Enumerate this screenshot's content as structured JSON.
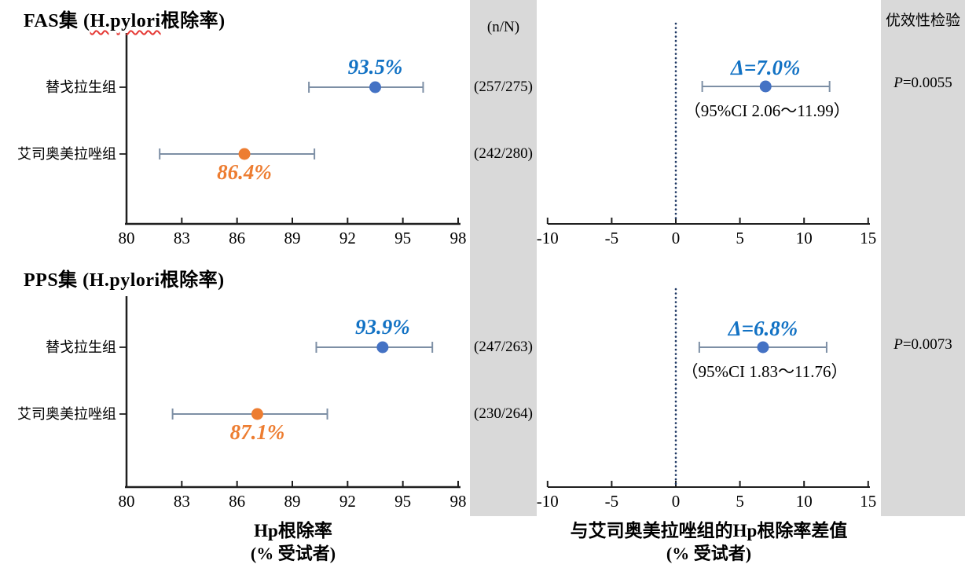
{
  "colors": {
    "tegoprazan_dot": "#4472C4",
    "tegoprazan_label": "#1272C4",
    "esomeprazole_dot": "#ED7D31",
    "esomeprazole_label": "#ED7D31",
    "error_bar": "#7D8FA5",
    "axis": "#1F1F1F",
    "ref_line": "#1F3864",
    "panel_bg": "#D9D9D9",
    "text": "#000000"
  },
  "columns": {
    "n_header": "(n/N)",
    "superiority_header": "优效性检验"
  },
  "axis_captions": {
    "rate_line1": "Hp根除率",
    "rate_line2": "(% 受试者)",
    "diff_line1": "与艾司奥美拉唑组的Hp根除率差值",
    "diff_line2": "(% 受试者)"
  },
  "chart_data": {
    "type": "scatter",
    "subtype": "forest-plot-dot-with-95ci-error-bars",
    "rate_axis": {
      "xlim": [
        80,
        98
      ],
      "ticks": [
        80,
        83,
        86,
        89,
        92,
        95,
        98
      ],
      "xlabel": "Hp根除率 (% 受试者)",
      "grid": false
    },
    "diff_axis": {
      "xlim": [
        -10,
        15
      ],
      "ticks": [
        -10,
        -5,
        0,
        5,
        10,
        15
      ],
      "ref_x": 0,
      "xlabel": "与艾司奥美拉唑组的Hp根除率差值 (% 受试者)",
      "grid": false
    },
    "panels": [
      {
        "key": "fas",
        "title": {
          "pre": "FAS集 (",
          "mark": "H.pylori",
          "post": "根除率)"
        },
        "rows": [
          {
            "group": "替戈拉生组",
            "series": "tegoprazan",
            "rate": 93.5,
            "rate_label": "93.5%",
            "ci": [
              89.9,
              96.1
            ],
            "n_over_N": "(257/275)",
            "label_side": "above"
          },
          {
            "group": "艾司奥美拉唑组",
            "series": "esomeprazole",
            "rate": 86.4,
            "rate_label": "86.4%",
            "ci": [
              81.8,
              90.2
            ],
            "n_over_N": "(242/280)",
            "label_side": "below"
          }
        ],
        "diff": {
          "delta": 7.0,
          "delta_label": "Δ=7.0%",
          "ci": [
            2.06,
            11.99
          ],
          "ci_label": "（95%CI  2.06～11.99）"
        },
        "superiority": {
          "p_italic": "P",
          "p_rest": "=0.0055"
        }
      },
      {
        "key": "pps",
        "title": {
          "pre": "PPS集 (",
          "mark": "H.pylori",
          "post": "根除率)"
        },
        "rows": [
          {
            "group": "替戈拉生组",
            "series": "tegoprazan",
            "rate": 93.9,
            "rate_label": "93.9%",
            "ci": [
              90.3,
              96.6
            ],
            "n_over_N": "(247/263)",
            "label_side": "above"
          },
          {
            "group": "艾司奥美拉唑组",
            "series": "esomeprazole",
            "rate": 87.1,
            "rate_label": "87.1%",
            "ci": [
              82.5,
              90.9
            ],
            "n_over_N": "(230/264)",
            "label_side": "below"
          }
        ],
        "diff": {
          "delta": 6.8,
          "delta_label": "Δ=6.8%",
          "ci": [
            1.83,
            11.76
          ],
          "ci_label": "（95%CI  1.83～11.76）"
        },
        "superiority": {
          "p_italic": "P",
          "p_rest": "=0.0073"
        }
      }
    ]
  }
}
